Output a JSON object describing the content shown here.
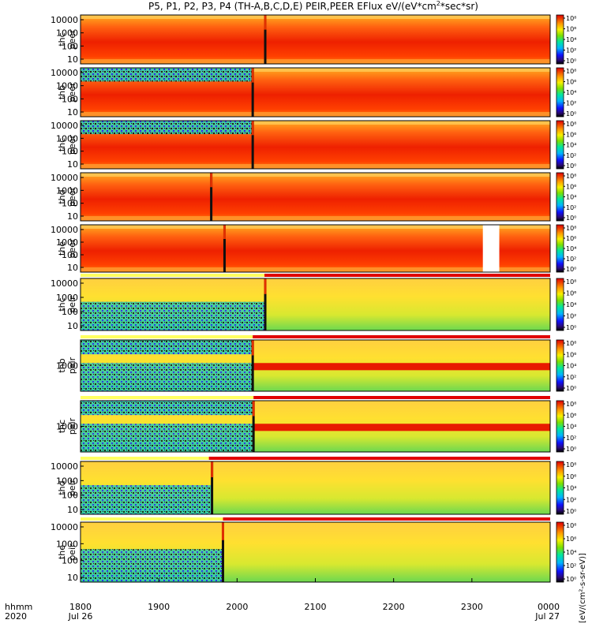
{
  "chart_data": {
    "type": "heatmap",
    "title": "P5, P1, P2, P3, P4 (TH-A,B,C,D,E) PEIR,PEER EFlux eV/(eV*cm²*sec*sr)",
    "title_parts": {
      "main": "P5, P1, P2, P3, P4 (TH-A,B,C,D,E) PEIR,PEER EFlux eV/(eV*cm",
      "sup": "2",
      "tail": "*sec*sr)"
    },
    "x_label_row1": "hhmm",
    "x_label_row2": "2020",
    "x_ticks": [
      {
        "t": 1800,
        "label": "1800",
        "sub": "Jul 26"
      },
      {
        "t": 1900,
        "label": "1900",
        "sub": ""
      },
      {
        "t": 2000,
        "label": "2000",
        "sub": ""
      },
      {
        "t": 2100,
        "label": "2100",
        "sub": ""
      },
      {
        "t": 2200,
        "label": "2200",
        "sub": ""
      },
      {
        "t": 2300,
        "label": "2300",
        "sub": ""
      },
      {
        "t": 2400,
        "label": "0000",
        "sub": "Jul 27"
      }
    ],
    "x_range": [
      1800,
      2400
    ],
    "colorbar_ticks": [
      "10⁰",
      "10²",
      "10⁴",
      "10⁶",
      "10⁸"
    ],
    "colorbar_unit": "[eV/(cm²-s-sr-eV)]",
    "panels": [
      {
        "label1": "thc",
        "label2": "peer",
        "yticks": [
          "10000",
          "1000",
          "100",
          "10"
        ],
        "event_t": 2036,
        "status_bar": null,
        "gap": null
      },
      {
        "label1": "thb",
        "label2": "peer",
        "yticks": [
          "10000",
          "1000",
          "100",
          "10"
        ],
        "event_t": 2020,
        "status_bar": null,
        "gap": null
      },
      {
        "label1": "thc",
        "label2": "peer",
        "yticks": [
          "10000",
          "1000",
          "100",
          "10"
        ],
        "event_t": 2020,
        "status_bar": null,
        "gap": null
      },
      {
        "label1": "thd",
        "label2": "peer",
        "yticks": [
          "10000",
          "1000",
          "100",
          "10"
        ],
        "event_t": 1967,
        "status_bar": null,
        "gap": null
      },
      {
        "label1": "the",
        "label2": "peer",
        "yticks": [
          "10000",
          "1000",
          "100",
          "10"
        ],
        "event_t": 1984,
        "status_bar": null,
        "gap": [
          2314,
          2335
        ]
      },
      {
        "label1": "thc",
        "label2": "peir",
        "yticks": [
          "10000",
          "1000",
          "100",
          "10"
        ],
        "event_t": 2036,
        "status_bar": 2035,
        "gap": null
      },
      {
        "label1": "thb",
        "label2": "peir",
        "yticks": [
          "1000"
        ],
        "event_t": 2020,
        "status_bar": 2020,
        "gap": null
      },
      {
        "label1": "thc",
        "label2": "peir",
        "yticks": [
          "1000"
        ],
        "event_t": 2021,
        "status_bar": 2021,
        "gap": null
      },
      {
        "label1": "thd",
        "label2": "peir",
        "yticks": [
          "10000",
          "1000",
          "100",
          "10"
        ],
        "event_t": 1968,
        "status_bar": 1964,
        "gap": null
      },
      {
        "label1": "the",
        "label2": "peir",
        "yticks": [
          "10000",
          "1000",
          "100",
          "10"
        ],
        "event_t": 1982,
        "status_bar": 1982,
        "gap": null
      }
    ]
  }
}
